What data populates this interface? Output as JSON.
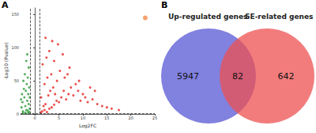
{
  "chart_data": [
    {
      "type": "scatter",
      "title": "A",
      "x_label": "Log2FC",
      "y_label": "-Log10 (Pvalue)",
      "xlim": [
        -3,
        25
      ],
      "xticks": [
        0,
        5,
        10,
        15,
        20,
        25
      ],
      "ylim": [
        0,
        160
      ],
      "yticks": [
        0,
        50,
        100,
        150
      ],
      "grid": false,
      "line_style": "dashed",
      "cutoffs": {
        "x": [
          -1,
          1
        ],
        "y": 1.3
      },
      "series": [
        {
          "color": "#2e9b3a",
          "x": [
            -1.2,
            -1.5,
            -1.1,
            -1.8,
            -2.0,
            -1.3,
            -2.5,
            -2.8,
            -1.6,
            -2.2,
            -1.4,
            -1.9,
            -2.6,
            -1.2,
            -1.7,
            -2.3,
            -2.9,
            -1.5,
            -2.1,
            -1.3,
            -1.8,
            -2.4,
            -1.6,
            -2.7,
            -1.1,
            -2.0,
            -1.4,
            -2.5
          ],
          "values": [
            3,
            5,
            8,
            6,
            12,
            15,
            4,
            10,
            20,
            25,
            30,
            35,
            18,
            40,
            45,
            38,
            22,
            55,
            60,
            70,
            80,
            50,
            90,
            30,
            25,
            2,
            1.8,
            1.5
          ]
        },
        {
          "color": "#e8231e",
          "x": [
            1.2,
            1.5,
            2,
            2.5,
            3,
            1.8,
            2.2,
            3.5,
            4,
            4.5,
            5,
            1.3,
            2.8,
            3.2,
            3.8,
            4.2,
            5.5,
            6,
            6.5,
            7,
            7.5,
            8,
            8.5,
            9,
            9.5,
            10,
            10.5,
            11,
            12,
            13,
            14,
            15,
            16,
            17.5,
            2,
            2.6,
            3.4,
            4.6,
            5.2,
            6.2,
            7.2,
            1.6,
            2.4,
            3,
            4,
            5.8,
            3.6,
            2.2,
            4.8,
            6.8,
            9.2,
            11.5,
            12.5
          ],
          "values": [
            2,
            4,
            6,
            3,
            8,
            12,
            15,
            10,
            14,
            20,
            18,
            25,
            28,
            35,
            40,
            30,
            25,
            35,
            22,
            30,
            40,
            28,
            45,
            35,
            20,
            30,
            25,
            18,
            22,
            15,
            12,
            10,
            8,
            6,
            45,
            55,
            60,
            50,
            65,
            55,
            70,
            75,
            85,
            95,
            80,
            90,
            110,
            115,
            105,
            60,
            50,
            40,
            35
          ]
        },
        {
          "color": "#f28a4c",
          "x": [
            23
          ],
          "values": [
            145
          ]
        }
      ]
    },
    {
      "type": "venn",
      "title": "B",
      "sets": [
        {
          "name": "Up-regulated genes",
          "color": "#6b6bd9"
        },
        {
          "name": "SE-related genes",
          "color": "#ee5050"
        }
      ],
      "values": [
        5947,
        82,
        642
      ]
    }
  ]
}
